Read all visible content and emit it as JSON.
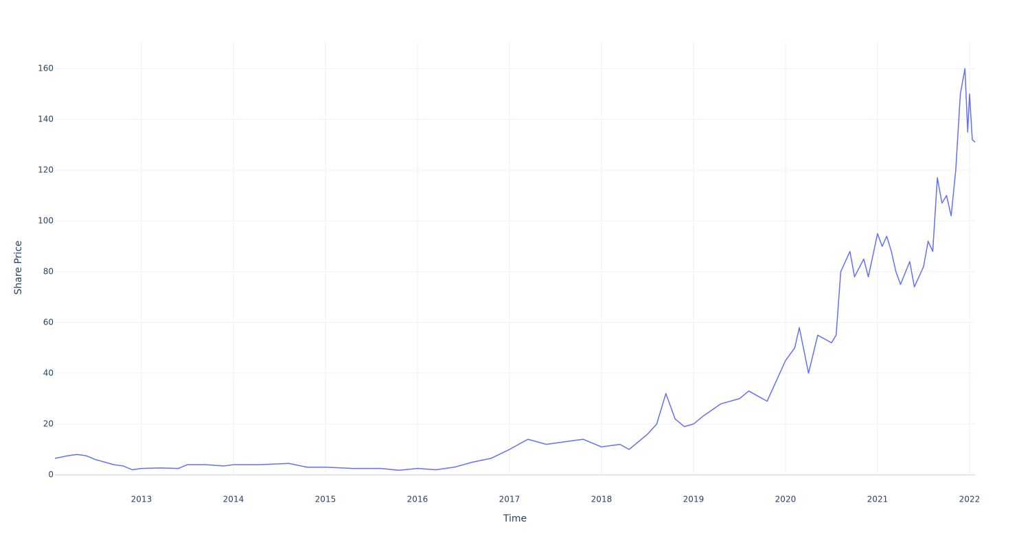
{
  "chart_data": {
    "type": "line",
    "x_label": "Time",
    "y_label": "Share Price",
    "x": [
      2012.06,
      2012.2,
      2012.3,
      2012.4,
      2012.5,
      2012.6,
      2012.7,
      2012.8,
      2012.9,
      2013.0,
      2013.2,
      2013.4,
      2013.5,
      2013.7,
      2013.9,
      2014.0,
      2014.3,
      2014.6,
      2014.8,
      2015.0,
      2015.3,
      2015.6,
      2015.8,
      2016.0,
      2016.2,
      2016.4,
      2016.6,
      2016.8,
      2017.0,
      2017.2,
      2017.4,
      2017.6,
      2017.8,
      2018.0,
      2018.2,
      2018.3,
      2018.5,
      2018.6,
      2018.7,
      2018.8,
      2018.9,
      2019.0,
      2019.1,
      2019.3,
      2019.5,
      2019.6,
      2019.7,
      2019.8,
      2020.0,
      2020.1,
      2020.15,
      2020.25,
      2020.35,
      2020.5,
      2020.55,
      2020.6,
      2020.7,
      2020.75,
      2020.85,
      2020.9,
      2021.0,
      2021.05,
      2021.1,
      2021.15,
      2021.2,
      2021.25,
      2021.35,
      2021.4,
      2021.5,
      2021.55,
      2021.6,
      2021.65,
      2021.7,
      2021.75,
      2021.8,
      2021.85,
      2021.9,
      2021.95,
      2021.98,
      2022.0,
      2022.03,
      2022.06
    ],
    "series": [
      {
        "name": "Share Price",
        "color": "#636efa",
        "values": [
          6.5,
          7.5,
          8,
          7.5,
          6,
          5,
          4,
          3.5,
          2,
          2.5,
          2.7,
          2.5,
          4,
          4,
          3.5,
          4,
          4,
          4.5,
          3,
          3,
          2.5,
          2.5,
          1.8,
          2.5,
          2,
          3,
          5,
          6.5,
          10,
          14,
          12,
          13,
          14,
          11,
          12,
          10,
          16,
          20,
          32,
          22,
          19,
          20,
          23,
          28,
          30,
          33,
          31,
          29,
          45,
          50,
          58,
          40,
          55,
          52,
          55,
          80,
          88,
          78,
          85,
          78,
          95,
          90,
          94,
          88,
          80,
          75,
          84,
          74,
          82,
          92,
          88,
          117,
          107,
          110,
          102,
          120,
          150,
          160,
          135,
          150,
          132,
          131
        ]
      }
    ],
    "xlim": [
      2012.06,
      2022.06
    ],
    "xticks": [
      2013,
      2014,
      2015,
      2016,
      2017,
      2018,
      2019,
      2020,
      2021,
      2022
    ],
    "ylim": [
      -0.3,
      170.8
    ],
    "yticks": [
      0,
      20,
      40,
      60,
      80,
      100,
      120,
      140,
      160
    ],
    "grid": true
  }
}
